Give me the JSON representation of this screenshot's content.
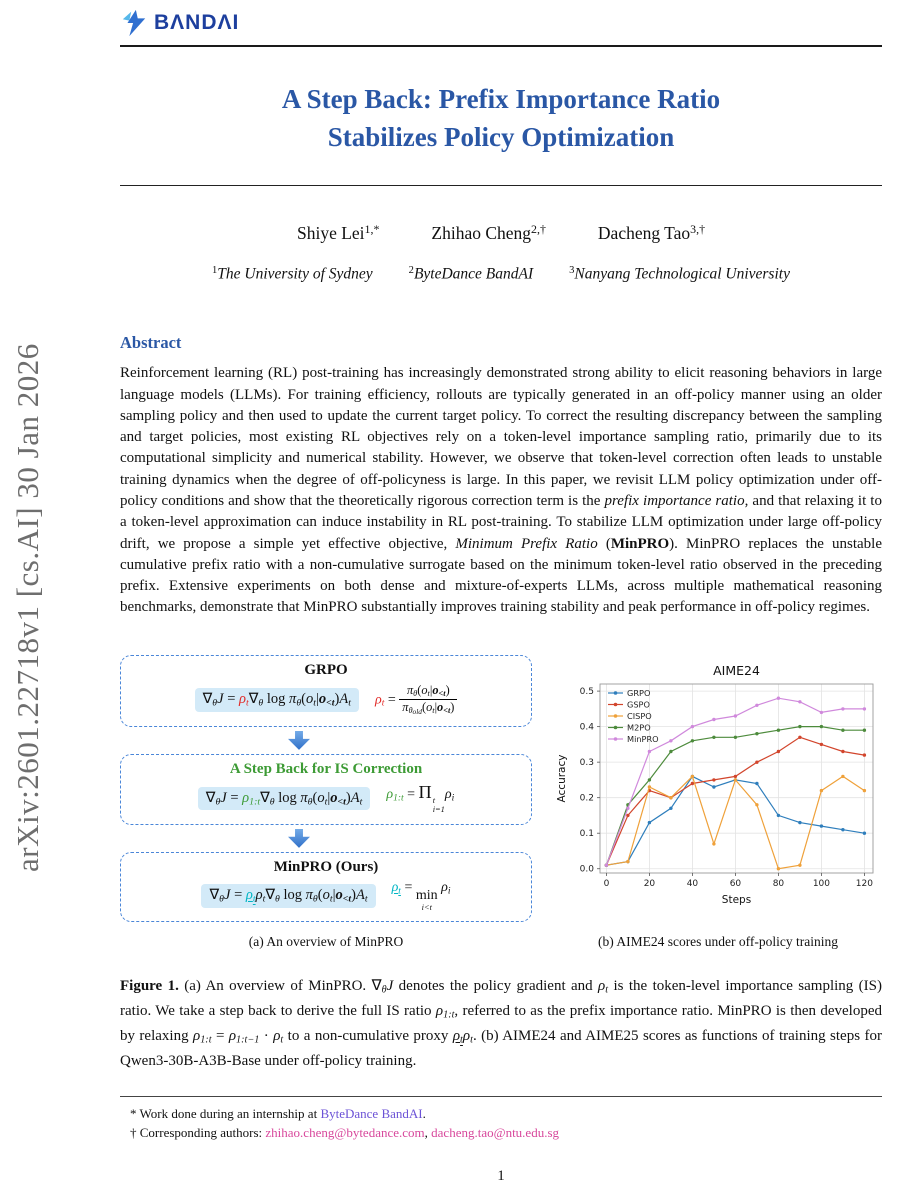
{
  "colors": {
    "title_blue": "#2a57a5",
    "green": "#3d9b35",
    "red": "#e12b28",
    "teal": "#00b5c4",
    "link_violet": "#6b52d6",
    "link_pink": "#d8489c",
    "highlight": "#d3eaf8",
    "box_border": "#4a86d8",
    "logo_blue": "#1d3f9e",
    "sidebar_gray": "#6e6e6e"
  },
  "sidebar": {
    "arxiv_label": "arXiv:2601.22718v1  [cs.AI]  30 Jan 2026"
  },
  "header": {
    "logo_text": "BΛNDΛI",
    "logo_icon": "spark-bolt-icon"
  },
  "title": {
    "line1": "A Step Back: Prefix Importance Ratio",
    "line2": "Stabilizes Policy Optimization"
  },
  "authors": {
    "a1": [
      {
        "t": "Shiye Lei"
      },
      {
        "t": "1,*",
        "s": "sup"
      }
    ],
    "a2": [
      {
        "t": "Zhihao Cheng"
      },
      {
        "t": "2,†",
        "s": "sup"
      }
    ],
    "a3": [
      {
        "t": "Dacheng Tao"
      },
      {
        "t": "3,†",
        "s": "sup"
      }
    ]
  },
  "affiliations": {
    "f1": [
      {
        "t": "1",
        "s": "sup"
      },
      {
        "t": "The University of Sydney",
        "s": "i"
      }
    ],
    "f2": [
      {
        "t": "2",
        "s": "sup"
      },
      {
        "t": "ByteDance BandAI",
        "s": "i"
      }
    ],
    "f3": [
      {
        "t": "3",
        "s": "sup"
      },
      {
        "t": "Nanyang Technological University",
        "s": "i"
      }
    ]
  },
  "abstract": {
    "heading": "Abstract",
    "tokens": [
      {
        "t": "Reinforcement learning (RL) post-training has increasingly demonstrated strong ability to elicit reasoning behaviors in large language models (LLMs). For training efficiency, rollouts are typically generated in an off-policy manner using an older sampling policy and then used to update the current target policy. To correct the resulting discrepancy between the sampling and target policies, most existing RL objectives rely on a token-level importance sampling ratio, primarily due to its computational simplicity and numerical stability. However, we observe that token-level correction often leads to unstable training dynamics when the degree of off-policyness is large. In this paper, we revisit LLM policy optimization under off-policy conditions and show that the theoretically rigorous correction term is the "
      },
      {
        "t": "prefix importance ratio",
        "s": "i"
      },
      {
        "t": ", and that relaxing it to a token-level approximation can induce instability in RL post-training. To stabilize LLM optimization under large off-policy drift, we propose a simple yet effective objective, "
      },
      {
        "t": "Minimum Prefix Ratio",
        "s": "i"
      },
      {
        "t": " ("
      },
      {
        "t": "MinPRO",
        "s": "b"
      },
      {
        "t": "). MinPRO replaces the unstable cumulative prefix ratio with a non-cumulative surrogate based on the minimum token-level ratio observed in the preceding prefix. Extensive experiments on both dense and mixture-of-experts LLMs, across multiple mathematical reasoning benchmarks, demonstrate that MinPRO substantially improves training stability and peak performance in off-policy regimes."
      }
    ]
  },
  "figure": {
    "diagram": {
      "box1": {
        "title": "GRPO",
        "eq_main": [
          {
            "t": "∇"
          },
          {
            "t": "θ",
            "s": "i sub"
          },
          {
            "t": "J",
            "s": "i"
          },
          {
            "t": " = "
          },
          {
            "t": "ρ",
            "s": "i red"
          },
          {
            "t": "t",
            "s": "i sub red"
          },
          {
            "t": "∇"
          },
          {
            "t": "θ",
            "s": "i sub"
          },
          {
            "t": " log "
          },
          {
            "t": "π",
            "s": "i"
          },
          {
            "t": "θ",
            "s": "i sub"
          },
          {
            "t": "("
          },
          {
            "t": "o",
            "s": "i"
          },
          {
            "t": "t",
            "s": "i sub"
          },
          {
            "t": "|"
          },
          {
            "t": "o",
            "s": "i b"
          },
          {
            "t": "<t",
            "s": "i b sub"
          },
          {
            "t": ")"
          },
          {
            "t": "A",
            "s": "i"
          },
          {
            "t": "t",
            "s": "i sub"
          }
        ],
        "eq_def": [
          {
            "t": "ρ",
            "s": "i red"
          },
          {
            "t": "t",
            "s": "i sub red"
          },
          {
            "t": " = "
          },
          {
            "frac": {
              "num": [
                {
                  "t": "π",
                  "s": "i"
                },
                {
                  "t": "θ",
                  "s": "i sub"
                },
                {
                  "t": "("
                },
                {
                  "t": "o",
                  "s": "i"
                },
                {
                  "t": "t",
                  "s": "i sub"
                },
                {
                  "t": "|"
                },
                {
                  "t": "o",
                  "s": "i b"
                },
                {
                  "t": "<t",
                  "s": "i b sub"
                },
                {
                  "t": ")"
                }
              ],
              "den": [
                {
                  "t": "π",
                  "s": "i"
                },
                {
                  "t": "θ",
                  "s": "i sub"
                },
                {
                  "t": "old",
                  "s": "i sub2"
                },
                {
                  "t": "("
                },
                {
                  "t": "o",
                  "s": "i"
                },
                {
                  "t": "t",
                  "s": "i sub"
                },
                {
                  "t": "|"
                },
                {
                  "t": "o",
                  "s": "i b"
                },
                {
                  "t": "<t",
                  "s": "i b sub"
                },
                {
                  "t": ")"
                }
              ]
            }
          }
        ]
      },
      "box2": {
        "title": "A Step Back for IS Correction",
        "eq_main": [
          {
            "t": "∇"
          },
          {
            "t": "θ",
            "s": "i sub"
          },
          {
            "t": "J",
            "s": "i"
          },
          {
            "t": " = "
          },
          {
            "t": "ρ",
            "s": "i green"
          },
          {
            "t": "1:t",
            "s": "i sub green"
          },
          {
            "t": "∇"
          },
          {
            "t": "θ",
            "s": "i sub"
          },
          {
            "t": " log "
          },
          {
            "t": "π",
            "s": "i"
          },
          {
            "t": "θ",
            "s": "i sub"
          },
          {
            "t": "("
          },
          {
            "t": "o",
            "s": "i"
          },
          {
            "t": "t",
            "s": "i sub"
          },
          {
            "t": "|"
          },
          {
            "t": "o",
            "s": "i b"
          },
          {
            "t": "<t",
            "s": "i b sub"
          },
          {
            "t": ")"
          },
          {
            "t": "A",
            "s": "i"
          },
          {
            "t": "t",
            "s": "i sub"
          }
        ],
        "eq_def": [
          {
            "t": "ρ",
            "s": "i green"
          },
          {
            "t": "1:t",
            "s": "i sub green"
          },
          {
            "t": " = "
          },
          {
            "t": "Π",
            "s": "big"
          },
          {
            "scripts": {
              "sup": [
                {
                  "t": "t",
                  "s": "i"
                }
              ],
              "sub": [
                {
                  "t": "i=1",
                  "s": "i"
                }
              ]
            }
          },
          {
            "t": "ρ",
            "s": "i"
          },
          {
            "t": "i",
            "s": "i sub"
          }
        ]
      },
      "box3": {
        "title_tokens": [
          {
            "t": "MinPRO",
            "s": "b"
          },
          {
            "t": " (Ours)"
          }
        ],
        "eq_main": [
          {
            "t": "∇"
          },
          {
            "t": "θ",
            "s": "i sub"
          },
          {
            "t": "J",
            "s": "i"
          },
          {
            "t": " = "
          },
          {
            "t": "ρ",
            "s": "i teal ul"
          },
          {
            "t": "t",
            "s": "i sub teal ul"
          },
          {
            "t": "ρ",
            "s": "i"
          },
          {
            "t": "t",
            "s": "i sub"
          },
          {
            "t": "∇"
          },
          {
            "t": "θ",
            "s": "i sub"
          },
          {
            "t": " log "
          },
          {
            "t": "π",
            "s": "i"
          },
          {
            "t": "θ",
            "s": "i sub"
          },
          {
            "t": "("
          },
          {
            "t": "o",
            "s": "i"
          },
          {
            "t": "t",
            "s": "i sub"
          },
          {
            "t": "|"
          },
          {
            "t": "o",
            "s": "i b"
          },
          {
            "t": "<t",
            "s": "i b sub"
          },
          {
            "t": ")"
          },
          {
            "t": "A",
            "s": "i"
          },
          {
            "t": "t",
            "s": "i sub"
          }
        ],
        "eq_def": [
          {
            "t": "ρ",
            "s": "i teal ul"
          },
          {
            "t": "t",
            "s": "i sub teal ul"
          },
          {
            "t": " = "
          },
          {
            "stack": {
              "main": [
                {
                  "t": "min"
                }
              ],
              "under": [
                {
                  "t": "i<t",
                  "s": "i"
                }
              ]
            }
          },
          {
            "t": " "
          },
          {
            "t": "ρ",
            "s": "i"
          },
          {
            "t": "i",
            "s": "i sub"
          }
        ]
      }
    },
    "caption_a": "(a) An overview of MinPRO",
    "caption_b": "(b) AIME24 scores under off-policy training",
    "caption_tokens": [
      {
        "t": "Figure 1.",
        "s": "b"
      },
      {
        "t": " (a) An overview of MinPRO. "
      },
      {
        "t": "∇"
      },
      {
        "t": "θ",
        "s": "i sub"
      },
      {
        "t": "J",
        "s": "i"
      },
      {
        "t": " denotes the policy gradient and "
      },
      {
        "t": "ρ",
        "s": "i"
      },
      {
        "t": "t",
        "s": "i sub"
      },
      {
        "t": " is the token-level importance sampling (IS) ratio. We take a step back to derive the full IS ratio "
      },
      {
        "t": "ρ",
        "s": "i"
      },
      {
        "t": "1:t",
        "s": "i sub"
      },
      {
        "t": ", referred to as the prefix importance ratio. MinPRO is then developed by relaxing "
      },
      {
        "t": "ρ",
        "s": "i"
      },
      {
        "t": "1:t",
        "s": "i sub"
      },
      {
        "t": " = "
      },
      {
        "t": "ρ",
        "s": "i"
      },
      {
        "t": "1:t−1",
        "s": "i sub"
      },
      {
        "t": " · "
      },
      {
        "t": "ρ",
        "s": "i"
      },
      {
        "t": "t",
        "s": "i sub"
      },
      {
        "t": " to a non-cumulative proxy "
      },
      {
        "t": "ρ",
        "s": "i ul"
      },
      {
        "t": "t",
        "s": "i sub ul"
      },
      {
        "t": "ρ",
        "s": "i"
      },
      {
        "t": "t",
        "s": "i sub"
      },
      {
        "t": ". (b) AIME24 and AIME25 scores as functions of training steps for Qwen3-30B-A3B-Base under off-policy training."
      }
    ]
  },
  "chart_data": {
    "type": "line",
    "title": "AIME24",
    "xlabel": "Steps",
    "ylabel": "Accuracy",
    "x": [
      0,
      10,
      20,
      30,
      40,
      50,
      60,
      70,
      80,
      90,
      100,
      110,
      120
    ],
    "xlim": [
      -3,
      124
    ],
    "ylim": [
      -0.012,
      0.52
    ],
    "xticks": [
      0,
      20,
      40,
      60,
      80,
      100,
      120
    ],
    "yticks": [
      0.0,
      0.1,
      0.2,
      0.3,
      0.4,
      0.5
    ],
    "grid": true,
    "legend_position": "upper-left",
    "series": [
      {
        "name": "GRPO",
        "color": "#2e7ebc",
        "values": [
          0.01,
          0.02,
          0.13,
          0.17,
          0.26,
          0.23,
          0.25,
          0.24,
          0.15,
          0.13,
          0.12,
          0.11,
          0.1
        ]
      },
      {
        "name": "GSPO",
        "color": "#d2452c",
        "values": [
          0.01,
          0.15,
          0.22,
          0.2,
          0.24,
          0.25,
          0.26,
          0.3,
          0.33,
          0.37,
          0.35,
          0.33,
          0.32
        ]
      },
      {
        "name": "CISPO",
        "color": "#efa13a",
        "values": [
          0.01,
          0.02,
          0.23,
          0.2,
          0.26,
          0.07,
          0.25,
          0.18,
          0.0,
          0.01,
          0.22,
          0.26,
          0.22
        ]
      },
      {
        "name": "M2PO",
        "color": "#4d8b3c",
        "values": [
          0.01,
          0.18,
          0.25,
          0.33,
          0.36,
          0.37,
          0.37,
          0.38,
          0.39,
          0.4,
          0.4,
          0.39,
          0.39
        ]
      },
      {
        "name": "MinPRO",
        "color": "#d089dc",
        "values": [
          0.01,
          0.17,
          0.33,
          0.36,
          0.4,
          0.42,
          0.43,
          0.46,
          0.48,
          0.47,
          0.44,
          0.45,
          0.45
        ]
      }
    ]
  },
  "footnotes": {
    "fn1": [
      {
        "t": "* Work done during an internship at "
      },
      {
        "t": "ByteDance BandAI",
        "s": "violet"
      },
      {
        "t": "."
      }
    ],
    "fn2": [
      {
        "t": "† Corresponding authors: "
      },
      {
        "t": "zhihao.cheng@bytedance.com",
        "s": "pink"
      },
      {
        "t": ", "
      },
      {
        "t": "dacheng.tao@ntu.edu.sg",
        "s": "pink"
      }
    ]
  },
  "page": {
    "number": "1"
  }
}
